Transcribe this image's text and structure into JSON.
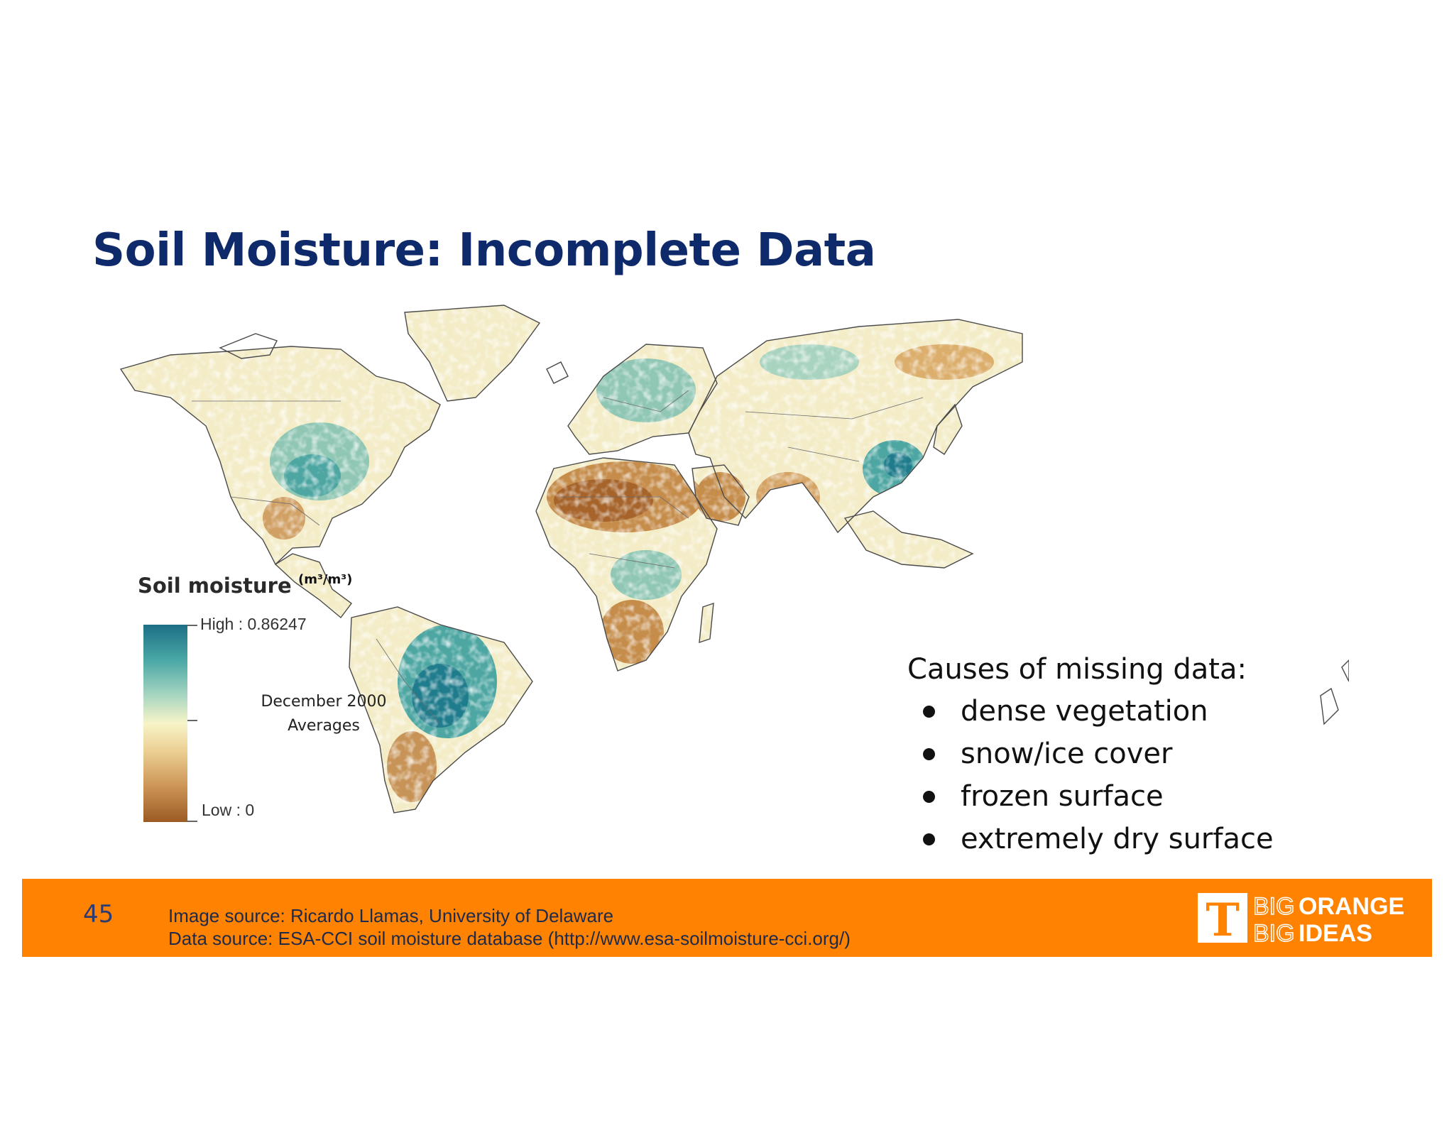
{
  "slide": {
    "title": "Soil Moisture: Incomplete Data",
    "number": "45"
  },
  "legend": {
    "title": "Soil moisture",
    "unit": "(m³/m³)",
    "high_label": "High : 0.86247",
    "low_label": "Low : 0",
    "high_value": 0.86247,
    "low_value": 0,
    "colors": {
      "high": "#1d6f86",
      "mid": "#f7f4c8",
      "low": "#9b5a22"
    }
  },
  "period": {
    "line1": "December 2000",
    "line2": "Averages"
  },
  "causes": {
    "heading": "Causes of missing data:",
    "items": [
      "dense vegetation",
      "snow/ice cover",
      "frozen surface",
      "extremely dry surface"
    ]
  },
  "footer": {
    "image_source": "Image source: Ricardo Llamas, University of Delaware",
    "data_source": "Data source: ESA-CCI soil moisture database (http://www.esa-soilmoisture-cci.org/)",
    "accent_color": "#ff8200"
  },
  "logo": {
    "mark": "T",
    "line1_light": "BIG",
    "line1_bold": "ORANGE",
    "line2_light": "BIG",
    "line2_bold": "IDEAS"
  }
}
